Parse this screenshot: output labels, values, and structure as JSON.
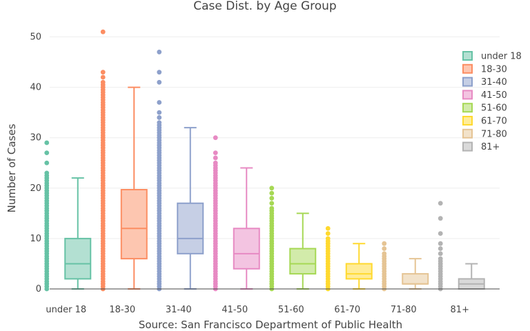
{
  "chart_data": {
    "type": "box",
    "title": "Case Dist. by Age Group",
    "xlabel": "Source: San Francisco Department of Public Health",
    "ylabel": "Number of Cases",
    "ylim": [
      0,
      52
    ],
    "yticks": [
      0,
      10,
      20,
      30,
      40,
      50
    ],
    "grid": true,
    "legend_position": "right",
    "categories": [
      "under 18",
      "18-30",
      "31-40",
      "41-50",
      "51-60",
      "61-70",
      "71-80",
      "81+"
    ],
    "series": [
      {
        "name": "under 18",
        "color": "#66c2a5",
        "fill": "#b3e0d2",
        "min": 0,
        "q1": 2,
        "median": 5,
        "q3": 10,
        "max": 22,
        "outliers_top": [
          23,
          25,
          27,
          29
        ],
        "point_max": 29
      },
      {
        "name": "18-30",
        "color": "#fc8d62",
        "fill": "#fdc6b0",
        "min": 0,
        "q1": 6,
        "median": 12,
        "q3": 19.7,
        "max": 40,
        "outliers_top": [
          41,
          42,
          43,
          51
        ],
        "point_max": 51
      },
      {
        "name": "31-40",
        "color": "#8da0cb",
        "fill": "#c6cfe5",
        "min": 0,
        "q1": 7,
        "median": 10,
        "q3": 17,
        "max": 32,
        "outliers_top": [
          33,
          34,
          35,
          37,
          41,
          43,
          47
        ],
        "point_max": 47
      },
      {
        "name": "41-50",
        "color": "#e78ac3",
        "fill": "#f3c4e1",
        "min": 0,
        "q1": 4,
        "median": 7,
        "q3": 12,
        "max": 24,
        "outliers_top": [
          25,
          26,
          27,
          30
        ],
        "point_max": 30
      },
      {
        "name": "51-60",
        "color": "#a6d854",
        "fill": "#d2ebaa",
        "min": 0,
        "q1": 3,
        "median": 5,
        "q3": 8,
        "max": 15,
        "outliers_top": [
          16,
          17,
          18,
          19,
          20
        ],
        "point_max": 20
      },
      {
        "name": "61-70",
        "color": "#ffd92f",
        "fill": "#ffec97",
        "min": 0,
        "q1": 2,
        "median": 3,
        "q3": 5,
        "max": 9,
        "outliers_top": [
          10,
          11,
          12
        ],
        "point_max": 12
      },
      {
        "name": "71-80",
        "color": "#e5c494",
        "fill": "#f2e2ca",
        "min": 0,
        "q1": 1,
        "median": 1,
        "q3": 3,
        "max": 6,
        "outliers_top": [
          7,
          8,
          9
        ],
        "point_max": 9
      },
      {
        "name": "81+",
        "color": "#b3b3b3",
        "fill": "#d9d9d9",
        "min": 0,
        "q1": 0,
        "median": 1,
        "q3": 2,
        "max": 5,
        "outliers_top": [
          6,
          7,
          8,
          9,
          11,
          14,
          17
        ],
        "point_max": 17
      }
    ]
  }
}
